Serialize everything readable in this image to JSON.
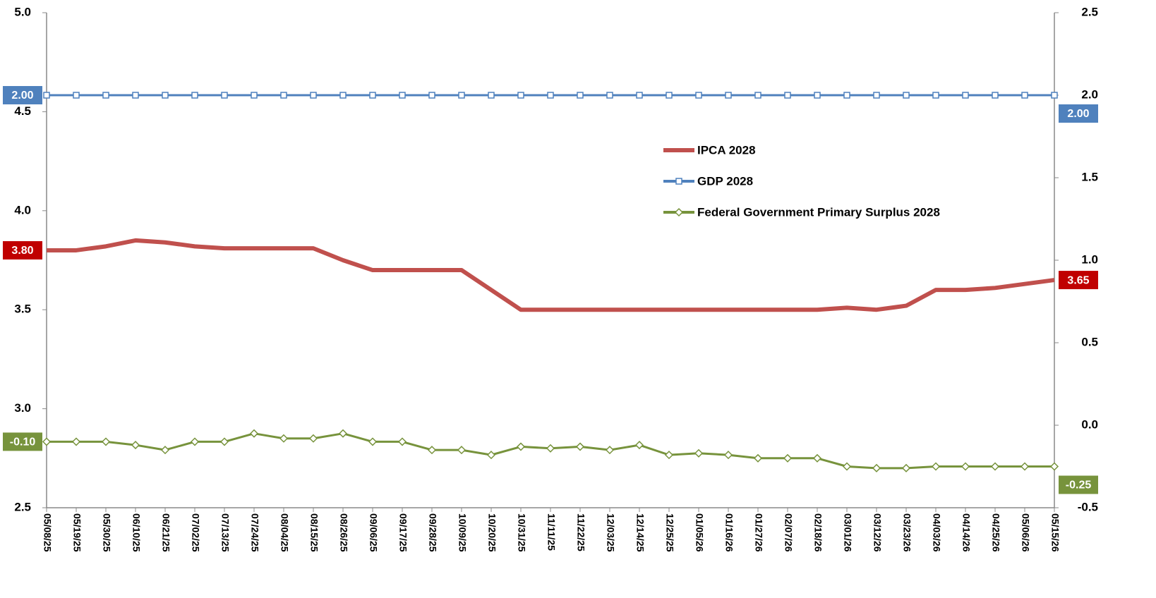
{
  "chart_data": {
    "type": "line",
    "categories": [
      "05/08/25",
      "05/19/25",
      "05/30/25",
      "06/10/25",
      "06/21/25",
      "07/02/25",
      "07/13/25",
      "07/24/25",
      "08/04/25",
      "08/15/25",
      "08/26/25",
      "09/06/25",
      "09/17/25",
      "09/28/25",
      "10/09/25",
      "10/20/25",
      "10/31/25",
      "11/11/25",
      "11/22/25",
      "12/03/25",
      "12/14/25",
      "12/25/25",
      "01/05/26",
      "01/16/26",
      "01/27/26",
      "02/07/26",
      "02/18/26",
      "03/01/26",
      "03/12/26",
      "03/23/26",
      "04/03/26",
      "04/14/26",
      "04/25/26",
      "05/06/26",
      "05/15/26"
    ],
    "series": [
      {
        "name": "IPCA 2028",
        "color": "#c0504d",
        "label_color": "#c00000",
        "axis": "y",
        "values": [
          3.8,
          3.8,
          3.82,
          3.85,
          3.84,
          3.82,
          3.81,
          3.81,
          3.81,
          3.81,
          3.75,
          3.7,
          3.7,
          3.7,
          3.7,
          3.6,
          3.5,
          3.5,
          3.5,
          3.5,
          3.5,
          3.5,
          3.5,
          3.5,
          3.5,
          3.5,
          3.5,
          3.51,
          3.5,
          3.52,
          3.6,
          3.6,
          3.61,
          3.63,
          3.65
        ],
        "value_labels": [
          "3.80",
          null,
          null,
          null,
          null,
          null,
          null,
          null,
          null,
          null,
          null,
          null,
          null,
          null,
          null,
          null,
          null,
          null,
          null,
          null,
          null,
          null,
          null,
          null,
          null,
          null,
          null,
          null,
          null,
          null,
          null,
          null,
          null,
          null,
          "3.65"
        ]
      },
      {
        "name": "GDP 2028",
        "color": "#4f81bd",
        "label_color": "#4f81bd",
        "axis": "y2",
        "marker": "square",
        "values": [
          2.0,
          2.0,
          2.0,
          2.0,
          2.0,
          2.0,
          2.0,
          2.0,
          2.0,
          2.0,
          2.0,
          2.0,
          2.0,
          2.0,
          2.0,
          2.0,
          2.0,
          2.0,
          2.0,
          2.0,
          2.0,
          2.0,
          2.0,
          2.0,
          2.0,
          2.0,
          2.0,
          2.0,
          2.0,
          2.0,
          2.0,
          2.0,
          2.0,
          2.0,
          2.0
        ],
        "value_labels": [
          "2.00",
          null,
          null,
          null,
          null,
          null,
          null,
          null,
          null,
          null,
          null,
          null,
          null,
          null,
          null,
          null,
          null,
          null,
          null,
          null,
          null,
          null,
          null,
          null,
          null,
          null,
          null,
          null,
          null,
          null,
          null,
          null,
          null,
          null,
          "2.00"
        ]
      },
      {
        "name": "Federal Government Primary Surplus 2028",
        "color": "#77933c",
        "label_color": "#77933c",
        "axis": "y2",
        "marker": "diamond",
        "values": [
          -0.1,
          -0.1,
          -0.1,
          -0.12,
          -0.15,
          -0.1,
          -0.1,
          -0.05,
          -0.08,
          -0.08,
          -0.05,
          -0.1,
          -0.1,
          -0.15,
          -0.15,
          -0.18,
          -0.13,
          -0.14,
          -0.13,
          -0.15,
          -0.12,
          -0.18,
          -0.17,
          -0.18,
          -0.2,
          -0.2,
          -0.2,
          -0.25,
          -0.26,
          -0.26,
          -0.25,
          -0.25,
          -0.25,
          -0.25,
          -0.25
        ],
        "value_labels": [
          "-0.10",
          null,
          null,
          null,
          null,
          null,
          null,
          null,
          null,
          null,
          null,
          null,
          null,
          null,
          null,
          null,
          null,
          null,
          null,
          null,
          null,
          null,
          null,
          null,
          null,
          null,
          null,
          null,
          null,
          null,
          null,
          null,
          null,
          null,
          "-0.25"
        ]
      }
    ],
    "ylim": [
      2.5,
      5.0
    ],
    "yticks": [
      {
        "value": 2.5,
        "label": "2.5"
      },
      {
        "value": 3,
        "label": "3.0"
      },
      {
        "value": 3.5,
        "label": "3.5"
      },
      {
        "value": 4,
        "label": "4.0"
      },
      {
        "value": 4.5,
        "label": "4.5"
      },
      {
        "value": 5,
        "label": "5.0"
      }
    ],
    "y2lim": [
      -0.5,
      2.5
    ],
    "y2ticks": [
      -0.5,
      {
        "value": 0,
        "label": "0.0"
      },
      0.5,
      {
        "value": 1,
        "label": "1.0"
      },
      1.5,
      {
        "value": 2,
        "label": "2.0"
      },
      2.5
    ],
    "legend": "center"
  }
}
